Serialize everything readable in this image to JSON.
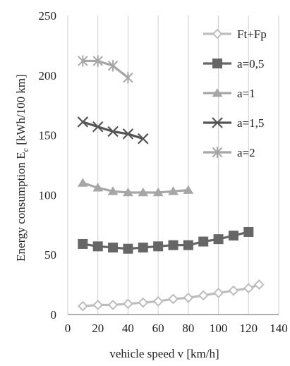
{
  "chart_data": {
    "type": "line",
    "xlabel": "vehicle speed v [km/h]",
    "ylabel": "Energy consumption E",
    "ylabel_sub": "c",
    "ylabel_units": " [kWh/100 km]",
    "xlim": [
      0,
      140
    ],
    "ylim": [
      0,
      250
    ],
    "x_ticks": [
      0,
      20,
      40,
      60,
      80,
      100,
      120,
      140
    ],
    "y_ticks": [
      0,
      50,
      100,
      150,
      200,
      250
    ],
    "grid": "vertical",
    "legend_position": "right",
    "series": [
      {
        "name": "Ft+Fp",
        "color": "#bdbdbd",
        "marker": "diamond-open",
        "x": [
          10,
          20,
          30,
          40,
          50,
          60,
          70,
          80,
          90,
          100,
          110,
          120,
          127
        ],
        "y": [
          7,
          8,
          8,
          9,
          10,
          11,
          13,
          14,
          16,
          18,
          20,
          22,
          25
        ]
      },
      {
        "name": "a=0,5",
        "color": "#666666",
        "marker": "square",
        "x": [
          10,
          20,
          30,
          40,
          50,
          60,
          70,
          80,
          90,
          100,
          110,
          120
        ],
        "y": [
          59,
          57,
          56,
          55,
          56,
          57,
          58,
          58,
          61,
          63,
          66,
          69
        ]
      },
      {
        "name": "a=1",
        "color": "#a6a6a6",
        "marker": "triangle",
        "x": [
          10,
          20,
          30,
          40,
          50,
          60,
          70,
          80
        ],
        "y": [
          110,
          106,
          103,
          102,
          102,
          102,
          103,
          104
        ]
      },
      {
        "name": "a=1,5",
        "color": "#555555",
        "marker": "x",
        "x": [
          10,
          20,
          30,
          40,
          50
        ],
        "y": [
          161,
          157,
          153,
          151,
          147
        ]
      },
      {
        "name": "a=2",
        "color": "#a6a6a6",
        "marker": "star",
        "x": [
          10,
          20,
          30,
          40
        ],
        "y": [
          212,
          212,
          208,
          198
        ]
      }
    ]
  }
}
